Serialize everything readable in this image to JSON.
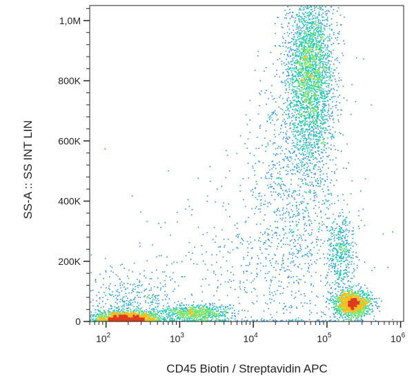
{
  "chart_data": {
    "type": "scatter",
    "subtype": "flow-cytometry density dot plot",
    "xlabel": "CD45 Biotin / Streptavidin APC",
    "ylabel": "SS-A :: SS INT LIN",
    "x_scale": "log",
    "y_scale": "linear",
    "xlim": [
      60,
      1100000
    ],
    "ylim": [
      0,
      1050000
    ],
    "x_ticks": [
      {
        "value": 100,
        "base": "10",
        "exp": "2"
      },
      {
        "value": 1000,
        "base": "10",
        "exp": "3"
      },
      {
        "value": 10000,
        "base": "10",
        "exp": "4"
      },
      {
        "value": 100000,
        "base": "10",
        "exp": "5"
      },
      {
        "value": 1000000,
        "base": "10",
        "exp": "6"
      }
    ],
    "y_ticks": [
      {
        "value": 0,
        "label": "0"
      },
      {
        "value": 200000,
        "label": "200K"
      },
      {
        "value": 400000,
        "label": "400K"
      },
      {
        "value": 600000,
        "label": "600K"
      },
      {
        "value": 800000,
        "label": "800K"
      },
      {
        "value": 1000000,
        "label": "1,0M"
      }
    ],
    "grid": false,
    "legend": "none",
    "color_scale": [
      "#1a1acc",
      "#2e8fe0",
      "#1fc9a8",
      "#7be36a",
      "#f0c020",
      "#e03a20"
    ],
    "populations": [
      {
        "name": "",
        "x_center": 190,
        "y_center": 12000,
        "log_spread_x": 0.22,
        "spread_y": 12000,
        "count": 1800
      },
      {
        "name": "",
        "x_center": 210,
        "y_center": 60000,
        "log_spread_x": 0.3,
        "spread_y": 55000,
        "count": 450
      },
      {
        "name": "",
        "x_center": 1600,
        "y_center": 28000,
        "log_spread_x": 0.25,
        "spread_y": 14000,
        "count": 800
      },
      {
        "name": "",
        "x_center": 60000,
        "y_center": 820000,
        "log_spread_x": 0.16,
        "spread_y": 160000,
        "count": 3000
      },
      {
        "name": "",
        "x_center": 35000,
        "y_center": 450000,
        "log_spread_x": 0.3,
        "spread_y": 220000,
        "count": 900
      },
      {
        "name": "",
        "x_center": 220000,
        "y_center": 60000,
        "log_spread_x": 0.12,
        "spread_y": 22000,
        "count": 1600
      },
      {
        "name": "",
        "x_center": 150000,
        "y_center": 230000,
        "log_spread_x": 0.1,
        "spread_y": 70000,
        "count": 450
      },
      {
        "name": "",
        "x_center": 8000,
        "y_center": 150000,
        "log_spread_x": 0.8,
        "spread_y": 180000,
        "count": 500
      }
    ]
  }
}
